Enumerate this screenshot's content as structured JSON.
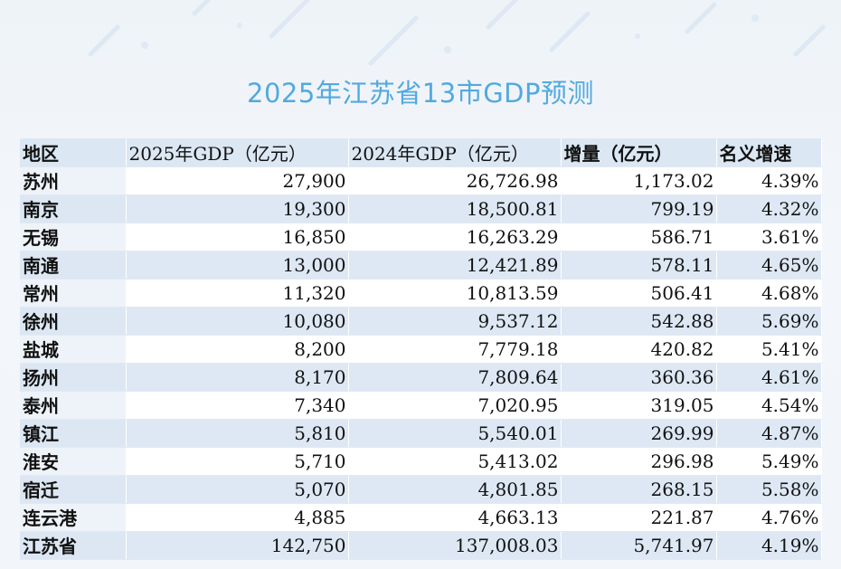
{
  "title": "2025年江苏省13市GDP预测",
  "table": {
    "headers": [
      "地区",
      "2025年GDP（亿元）",
      "2024年GDP（亿元）",
      "增量（亿元）",
      "名义增速"
    ],
    "rows": [
      [
        "苏州",
        "27,900",
        "26,726.98",
        "1,173.02",
        "4.39%"
      ],
      [
        "南京",
        "19,300",
        "18,500.81",
        "799.19",
        "4.32%"
      ],
      [
        "无锡",
        "16,850",
        "16,263.29",
        "586.71",
        "3.61%"
      ],
      [
        "南通",
        "13,000",
        "12,421.89",
        "578.11",
        "4.65%"
      ],
      [
        "常州",
        "11,320",
        "10,813.59",
        "506.41",
        "4.68%"
      ],
      [
        "徐州",
        "10,080",
        "9,537.12",
        "542.88",
        "5.69%"
      ],
      [
        "盐城",
        "8,200",
        "7,779.18",
        "420.82",
        "5.41%"
      ],
      [
        "扬州",
        "8,170",
        "7,809.64",
        "360.36",
        "4.61%"
      ],
      [
        "泰州",
        "7,340",
        "7,020.95",
        "319.05",
        "4.54%"
      ],
      [
        "镇江",
        "5,810",
        "5,540.01",
        "269.99",
        "4.87%"
      ],
      [
        "淮安",
        "5,710",
        "5,413.02",
        "296.98",
        "5.49%"
      ],
      [
        "宿迁",
        "5,070",
        "4,801.85",
        "268.15",
        "5.58%"
      ],
      [
        "连云港",
        "4,885",
        "4,663.13",
        "221.87",
        "4.76%"
      ],
      [
        "江苏省",
        "142,750",
        "137,008.03",
        "5,741.97",
        "4.19%"
      ]
    ]
  }
}
